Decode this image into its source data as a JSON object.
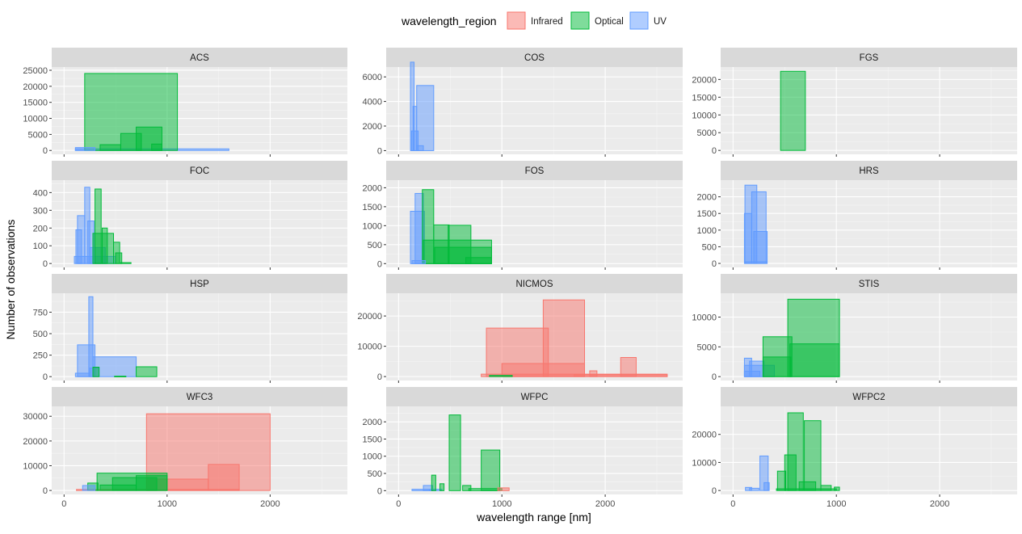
{
  "chart_data": {
    "type": "histogram-facets",
    "xlabel": "wavelength range [nm]",
    "ylabel": "Number of observations",
    "legend": {
      "title": "wavelength_region",
      "position": "top",
      "entries": [
        {
          "name": "Infrared",
          "fill": "#F8766D",
          "stroke": "#F8766D"
        },
        {
          "name": "Optical",
          "fill": "#00BA38",
          "stroke": "#00BA38"
        },
        {
          "name": "UV",
          "fill": "#619CFF",
          "stroke": "#619CFF"
        }
      ]
    },
    "xlim": [
      -120,
      2750
    ],
    "xticks": [
      0,
      1000,
      2000
    ],
    "grid": true,
    "panels": [
      {
        "name": "ACS",
        "ylim": [
          -1200,
          26000
        ],
        "yticks": [
          0,
          5000,
          10000,
          15000,
          20000,
          25000
        ],
        "bars": [
          {
            "region": "UV",
            "x0": 110,
            "x1": 1600,
            "y": 500
          },
          {
            "region": "Optical",
            "x0": 200,
            "x1": 1100,
            "y": 24000
          },
          {
            "region": "Optical",
            "x0": 350,
            "x1": 550,
            "y": 1800
          },
          {
            "region": "Optical",
            "x0": 550,
            "x1": 750,
            "y": 5300
          },
          {
            "region": "Optical",
            "x0": 700,
            "x1": 950,
            "y": 7300
          },
          {
            "region": "Optical",
            "x0": 850,
            "x1": 950,
            "y": 2000
          },
          {
            "region": "UV",
            "x0": 110,
            "x1": 300,
            "y": 900
          }
        ]
      },
      {
        "name": "COS",
        "ylim": [
          -300,
          6800
        ],
        "yticks": [
          0,
          2000,
          4000,
          6000
        ],
        "bars": [
          {
            "region": "UV",
            "x0": 115,
            "x1": 150,
            "y": 7200
          },
          {
            "region": "UV",
            "x0": 125,
            "x1": 190,
            "y": 1600
          },
          {
            "region": "UV",
            "x0": 140,
            "x1": 175,
            "y": 3600
          },
          {
            "region": "UV",
            "x0": 175,
            "x1": 340,
            "y": 5300
          },
          {
            "region": "UV",
            "x0": 175,
            "x1": 240,
            "y": 400
          }
        ]
      },
      {
        "name": "FGS",
        "ylim": [
          -1100,
          23500
        ],
        "yticks": [
          0,
          5000,
          10000,
          15000,
          20000
        ],
        "bars": [
          {
            "region": "Optical",
            "x0": 460,
            "x1": 700,
            "y": 22300
          }
        ]
      },
      {
        "name": "FOC",
        "ylim": [
          -22,
          470
        ],
        "yticks": [
          0,
          100,
          200,
          300,
          400
        ],
        "bars": [
          {
            "region": "UV",
            "x0": 115,
            "x1": 170,
            "y": 190
          },
          {
            "region": "UV",
            "x0": 130,
            "x1": 200,
            "y": 270
          },
          {
            "region": "UV",
            "x0": 200,
            "x1": 250,
            "y": 430
          },
          {
            "region": "UV",
            "x0": 230,
            "x1": 290,
            "y": 240
          },
          {
            "region": "UV",
            "x0": 250,
            "x1": 400,
            "y": 90
          },
          {
            "region": "UV",
            "x0": 100,
            "x1": 500,
            "y": 40
          },
          {
            "region": "Optical",
            "x0": 300,
            "x1": 360,
            "y": 420
          },
          {
            "region": "Optical",
            "x0": 280,
            "x1": 480,
            "y": 170
          },
          {
            "region": "Optical",
            "x0": 370,
            "x1": 420,
            "y": 200
          },
          {
            "region": "Optical",
            "x0": 480,
            "x1": 540,
            "y": 120
          },
          {
            "region": "Optical",
            "x0": 500,
            "x1": 560,
            "y": 60
          },
          {
            "region": "Optical",
            "x0": 550,
            "x1": 650,
            "y": 5
          }
        ]
      },
      {
        "name": "FOS",
        "ylim": [
          -100,
          2200
        ],
        "yticks": [
          0,
          500,
          1000,
          1500,
          2000
        ],
        "bars": [
          {
            "region": "UV",
            "x0": 115,
            "x1": 250,
            "y": 1380
          },
          {
            "region": "UV",
            "x0": 160,
            "x1": 240,
            "y": 1850
          },
          {
            "region": "Optical",
            "x0": 230,
            "x1": 340,
            "y": 1950
          },
          {
            "region": "Optical",
            "x0": 240,
            "x1": 900,
            "y": 620
          },
          {
            "region": "Optical",
            "x0": 340,
            "x1": 490,
            "y": 1020
          },
          {
            "region": "Optical",
            "x0": 480,
            "x1": 700,
            "y": 1010
          },
          {
            "region": "Optical",
            "x0": 350,
            "x1": 900,
            "y": 430
          },
          {
            "region": "Optical",
            "x0": 650,
            "x1": 900,
            "y": 160
          },
          {
            "region": "UV",
            "x0": 130,
            "x1": 260,
            "y": 80
          }
        ]
      },
      {
        "name": "HRS",
        "ylim": [
          -120,
          2500
        ],
        "yticks": [
          0,
          500,
          1000,
          1500,
          2000
        ],
        "bars": [
          {
            "region": "UV",
            "x0": 115,
            "x1": 230,
            "y": 2350
          },
          {
            "region": "UV",
            "x0": 110,
            "x1": 180,
            "y": 1500
          },
          {
            "region": "UV",
            "x0": 180,
            "x1": 320,
            "y": 2150
          },
          {
            "region": "UV",
            "x0": 200,
            "x1": 330,
            "y": 960
          },
          {
            "region": "UV",
            "x0": 120,
            "x1": 330,
            "y": 50
          }
        ]
      },
      {
        "name": "HSP",
        "ylim": [
          -45,
          970
        ],
        "yticks": [
          0,
          250,
          500,
          750
        ],
        "bars": [
          {
            "region": "UV",
            "x0": 240,
            "x1": 280,
            "y": 930
          },
          {
            "region": "UV",
            "x0": 130,
            "x1": 300,
            "y": 370
          },
          {
            "region": "UV",
            "x0": 280,
            "x1": 700,
            "y": 230
          },
          {
            "region": "UV",
            "x0": 250,
            "x1": 340,
            "y": 100
          },
          {
            "region": "UV",
            "x0": 110,
            "x1": 250,
            "y": 40
          },
          {
            "region": "Optical",
            "x0": 700,
            "x1": 900,
            "y": 115
          },
          {
            "region": "Optical",
            "x0": 280,
            "x1": 340,
            "y": 110
          },
          {
            "region": "Optical",
            "x0": 490,
            "x1": 600,
            "y": 5
          }
        ]
      },
      {
        "name": "NICMOS",
        "ylim": [
          -1300,
          27500
        ],
        "yticks": [
          0,
          10000,
          20000
        ],
        "bars": [
          {
            "region": "Infrared",
            "x0": 800,
            "x1": 2600,
            "y": 800
          },
          {
            "region": "Infrared",
            "x0": 850,
            "x1": 1450,
            "y": 16000
          },
          {
            "region": "Infrared",
            "x0": 1400,
            "x1": 1800,
            "y": 25300
          },
          {
            "region": "Infrared",
            "x0": 1000,
            "x1": 1800,
            "y": 4300
          },
          {
            "region": "Infrared",
            "x0": 1850,
            "x1": 1920,
            "y": 1900
          },
          {
            "region": "Infrared",
            "x0": 2150,
            "x1": 2300,
            "y": 6300
          },
          {
            "region": "Infrared",
            "x0": 1700,
            "x1": 2600,
            "y": 600
          },
          {
            "region": "Optical",
            "x0": 880,
            "x1": 1100,
            "y": 400
          }
        ]
      },
      {
        "name": "STIS",
        "ylim": [
          -650,
          14000
        ],
        "yticks": [
          0,
          5000,
          10000
        ],
        "bars": [
          {
            "region": "UV",
            "x0": 110,
            "x1": 180,
            "y": 3100
          },
          {
            "region": "UV",
            "x0": 160,
            "x1": 300,
            "y": 2600
          },
          {
            "region": "UV",
            "x0": 110,
            "x1": 400,
            "y": 1900
          },
          {
            "region": "UV",
            "x0": 110,
            "x1": 260,
            "y": 900
          },
          {
            "region": "Optical",
            "x0": 290,
            "x1": 570,
            "y": 6700
          },
          {
            "region": "Optical",
            "x0": 290,
            "x1": 560,
            "y": 3300
          },
          {
            "region": "Optical",
            "x0": 530,
            "x1": 1030,
            "y": 13000
          },
          {
            "region": "Optical",
            "x0": 550,
            "x1": 1030,
            "y": 5500
          }
        ]
      },
      {
        "name": "WFC3",
        "ylim": [
          -1600,
          34000
        ],
        "yticks": [
          0,
          10000,
          20000,
          30000
        ],
        "bars": [
          {
            "region": "Infrared",
            "x0": 800,
            "x1": 2000,
            "y": 31000
          },
          {
            "region": "Infrared",
            "x0": 1400,
            "x1": 1700,
            "y": 10500
          },
          {
            "region": "Infrared",
            "x0": 800,
            "x1": 1400,
            "y": 4600
          },
          {
            "region": "Infrared",
            "x0": 120,
            "x1": 1700,
            "y": 400
          },
          {
            "region": "Optical",
            "x0": 320,
            "x1": 1000,
            "y": 7000
          },
          {
            "region": "Optical",
            "x0": 470,
            "x1": 900,
            "y": 5200
          },
          {
            "region": "Optical",
            "x0": 230,
            "x1": 330,
            "y": 3000
          },
          {
            "region": "Optical",
            "x0": 700,
            "x1": 1000,
            "y": 6000
          },
          {
            "region": "Optical",
            "x0": 350,
            "x1": 700,
            "y": 2200
          },
          {
            "region": "UV",
            "x0": 180,
            "x1": 300,
            "y": 2000
          }
        ]
      },
      {
        "name": "WFPC",
        "ylim": [
          -110,
          2450
        ],
        "yticks": [
          0,
          500,
          1000,
          1500,
          2000
        ],
        "bars": [
          {
            "region": "UV",
            "x0": 130,
            "x1": 300,
            "y": 40
          },
          {
            "region": "UV",
            "x0": 240,
            "x1": 330,
            "y": 150
          },
          {
            "region": "UV",
            "x0": 300,
            "x1": 420,
            "y": 40
          },
          {
            "region": "Optical",
            "x0": 320,
            "x1": 360,
            "y": 450
          },
          {
            "region": "Optical",
            "x0": 400,
            "x1": 440,
            "y": 200
          },
          {
            "region": "Optical",
            "x0": 490,
            "x1": 600,
            "y": 2200
          },
          {
            "region": "Optical",
            "x0": 620,
            "x1": 700,
            "y": 150
          },
          {
            "region": "Optical",
            "x0": 800,
            "x1": 980,
            "y": 1180
          },
          {
            "region": "Optical",
            "x0": 680,
            "x1": 1000,
            "y": 60
          },
          {
            "region": "Infrared",
            "x0": 960,
            "x1": 1070,
            "y": 80
          }
        ]
      },
      {
        "name": "WFPC2",
        "ylim": [
          -1400,
          30000
        ],
        "yticks": [
          0,
          10000,
          20000
        ],
        "bars": [
          {
            "region": "UV",
            "x0": 120,
            "x1": 180,
            "y": 1100
          },
          {
            "region": "UV",
            "x0": 160,
            "x1": 250,
            "y": 800
          },
          {
            "region": "UV",
            "x0": 260,
            "x1": 340,
            "y": 12300
          },
          {
            "region": "UV",
            "x0": 300,
            "x1": 350,
            "y": 2800
          },
          {
            "region": "Optical",
            "x0": 430,
            "x1": 510,
            "y": 6900
          },
          {
            "region": "Optical",
            "x0": 500,
            "x1": 610,
            "y": 12700
          },
          {
            "region": "Optical",
            "x0": 530,
            "x1": 680,
            "y": 27700
          },
          {
            "region": "Optical",
            "x0": 690,
            "x1": 850,
            "y": 24900
          },
          {
            "region": "Optical",
            "x0": 640,
            "x1": 800,
            "y": 3100
          },
          {
            "region": "Optical",
            "x0": 850,
            "x1": 950,
            "y": 1800
          },
          {
            "region": "Optical",
            "x0": 980,
            "x1": 1030,
            "y": 1200
          },
          {
            "region": "Optical",
            "x0": 420,
            "x1": 1000,
            "y": 600
          }
        ]
      }
    ]
  }
}
